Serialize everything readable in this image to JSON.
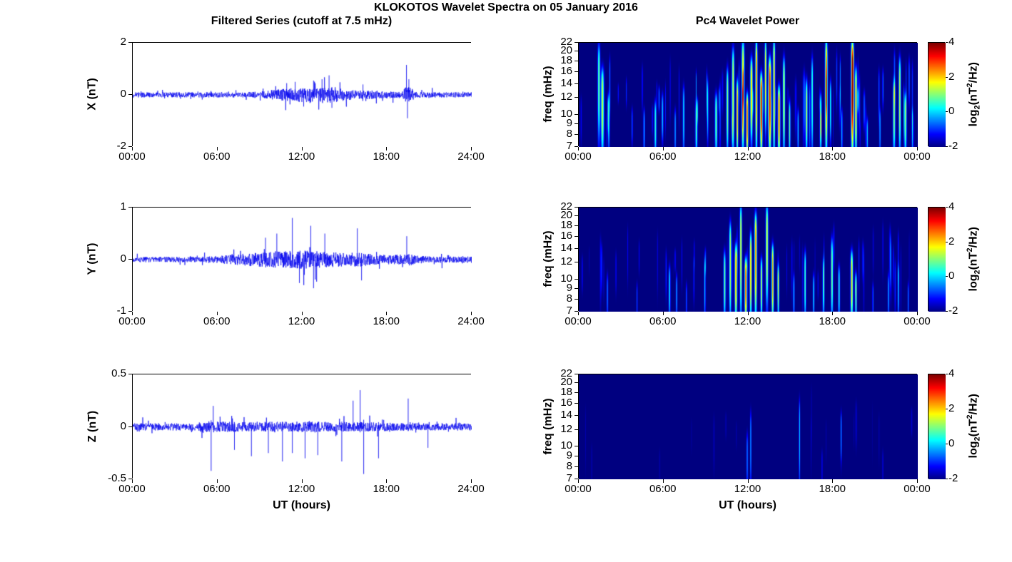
{
  "figure": {
    "title": "KLOKOTOS Wavelet Spectra on 05 January 2016"
  },
  "station": "KLOKOTOS",
  "date": "05 January 2016",
  "left_column": {
    "title": "Filtered Series (cutoff at 7.5 mHz)",
    "xlabel": "UT (hours)"
  },
  "right_column": {
    "title": "Pc4 Wavelet Power",
    "xlabel": "UT (hours)"
  },
  "chart_data": [
    {
      "id": "series-x",
      "type": "line",
      "ylabel": "X (nT)",
      "ylim": [
        -2,
        2
      ],
      "yticks": [
        -2,
        0,
        2
      ],
      "xlim_hours": [
        0,
        24
      ],
      "xtick_labels": [
        "00:00",
        "06:00",
        "12:00",
        "18:00",
        "24:00"
      ],
      "line_color": "#0000ee",
      "noise_envelope": [
        [
          0,
          0.1
        ],
        [
          8,
          0.1
        ],
        [
          9,
          0.13
        ],
        [
          10,
          0.2
        ],
        [
          11,
          0.25
        ],
        [
          12,
          0.28
        ],
        [
          13,
          0.3
        ],
        [
          13.8,
          0.33
        ],
        [
          14.5,
          0.28
        ],
        [
          15,
          0.22
        ],
        [
          16,
          0.15
        ],
        [
          17,
          0.18
        ],
        [
          18,
          0.13
        ],
        [
          19,
          0.12
        ],
        [
          19.3,
          0.3
        ],
        [
          19.6,
          0.3
        ],
        [
          20,
          0.12
        ],
        [
          21,
          0.1
        ],
        [
          24,
          0.1
        ]
      ],
      "spikes": [
        [
          10.9,
          0.45
        ],
        [
          11.5,
          0.5
        ],
        [
          12.1,
          -0.45
        ],
        [
          12.8,
          0.55
        ],
        [
          13.4,
          0.6
        ],
        [
          13.9,
          0.75
        ],
        [
          14.1,
          -0.5
        ],
        [
          16.3,
          0.4
        ],
        [
          19.38,
          1.15
        ],
        [
          19.45,
          -0.9
        ],
        [
          19.55,
          0.6
        ]
      ],
      "summary": "quiet band ~±0.1 nT, enhanced noise 10:00-15:00, large impulsive event ~19:25 reaching +1.1/-0.9 nT"
    },
    {
      "id": "series-y",
      "type": "line",
      "ylabel": "Y (nT)",
      "ylim": [
        -1,
        1
      ],
      "yticks": [
        -1,
        0,
        1
      ],
      "xlim_hours": [
        0,
        24
      ],
      "xtick_labels": [
        "00:00",
        "06:00",
        "12:00",
        "18:00",
        "24:00"
      ],
      "line_color": "#0000ee",
      "noise_envelope": [
        [
          0,
          0.05
        ],
        [
          4,
          0.05
        ],
        [
          5,
          0.06
        ],
        [
          6,
          0.07
        ],
        [
          7,
          0.09
        ],
        [
          8,
          0.12
        ],
        [
          9,
          0.14
        ],
        [
          10,
          0.16
        ],
        [
          11,
          0.17
        ],
        [
          12,
          0.18
        ],
        [
          13,
          0.16
        ],
        [
          14,
          0.15
        ],
        [
          15,
          0.13
        ],
        [
          16,
          0.14
        ],
        [
          17,
          0.1
        ],
        [
          18,
          0.09
        ],
        [
          19,
          0.1
        ],
        [
          19.5,
          0.14
        ],
        [
          20,
          0.08
        ],
        [
          21,
          0.06
        ],
        [
          24,
          0.06
        ]
      ],
      "spikes": [
        [
          9.4,
          0.42
        ],
        [
          10.2,
          0.5
        ],
        [
          11.3,
          0.8
        ],
        [
          11.8,
          -0.45
        ],
        [
          12.6,
          0.65
        ],
        [
          12.8,
          -0.55
        ],
        [
          13.6,
          0.5
        ],
        [
          15.9,
          0.6
        ],
        [
          16.2,
          -0.4
        ],
        [
          19.4,
          0.45
        ]
      ],
      "summary": "broad enhancement 08:00-16:00 with spikes to ~0.8 nT near 11:18"
    },
    {
      "id": "series-z",
      "type": "line",
      "ylabel": "Z (nT)",
      "ylim": [
        -0.5,
        0.5
      ],
      "yticks": [
        -0.5,
        0,
        0.5
      ],
      "xlim_hours": [
        0,
        24
      ],
      "xtick_labels": [
        "00:00",
        "06:00",
        "12:00",
        "18:00",
        "24:00"
      ],
      "line_color": "#0000ee",
      "noise_envelope": [
        [
          0,
          0.035
        ],
        [
          4.5,
          0.035
        ],
        [
          5,
          0.06
        ],
        [
          6,
          0.05
        ],
        [
          8,
          0.045
        ],
        [
          12,
          0.05
        ],
        [
          16,
          0.045
        ],
        [
          18,
          0.04
        ],
        [
          20,
          0.035
        ],
        [
          24,
          0.035
        ]
      ],
      "spikes": [
        [
          5.55,
          -0.42
        ],
        [
          5.7,
          0.2
        ],
        [
          7.2,
          -0.22
        ],
        [
          8.4,
          -0.28
        ],
        [
          9.6,
          -0.25
        ],
        [
          10.6,
          -0.33
        ],
        [
          11.3,
          -0.25
        ],
        [
          12.2,
          -0.3
        ],
        [
          13.1,
          -0.27
        ],
        [
          14.8,
          -0.33
        ],
        [
          15.6,
          0.25
        ],
        [
          16.1,
          0.35
        ],
        [
          16.35,
          -0.45
        ],
        [
          17.4,
          -0.3
        ],
        [
          19.5,
          0.27
        ],
        [
          20.9,
          -0.2
        ]
      ],
      "summary": "steady ~±0.05 nT band with sporadic downward spikes to ~-0.45 nT between 05:30 and 17:30"
    },
    {
      "id": "wavelet-x",
      "type": "heatmap",
      "ylabel": "freq (mHz)",
      "yscale": "log",
      "ylim_mhz": [
        7,
        22
      ],
      "yticks": [
        22,
        20,
        18,
        16,
        14,
        12,
        10,
        9,
        8,
        7
      ],
      "xtick_labels": [
        "00:00",
        "06:00",
        "12:00",
        "18:00",
        "00:00"
      ],
      "background_power": -2,
      "colorbar": {
        "colormap": "jet",
        "lim": [
          -2,
          4
        ],
        "ticks": [
          4,
          2,
          0,
          -2
        ],
        "label_parts": {
          "prefix": "log",
          "sub": "2",
          "mid": "(nT",
          "sup": "2",
          "suffix": "/Hz)"
        }
      },
      "bursts": [
        [
          1.4,
          0.08,
          8,
          21,
          3
        ],
        [
          1.65,
          0.1,
          7,
          16,
          3.5
        ],
        [
          2.1,
          0.06,
          7,
          12,
          2
        ],
        [
          4.6,
          0.05,
          7,
          10,
          2
        ],
        [
          5.4,
          0.07,
          7,
          11,
          2.5
        ],
        [
          5.9,
          0.06,
          8,
          12,
          2
        ],
        [
          6.8,
          0.05,
          7,
          10,
          1.8
        ],
        [
          7.4,
          0.06,
          7,
          13,
          2.2
        ],
        [
          8.3,
          0.07,
          7,
          11,
          2.8
        ],
        [
          9.1,
          0.05,
          8,
          14,
          2.2
        ],
        [
          9.7,
          0.08,
          7,
          12,
          3
        ],
        [
          10.5,
          0.07,
          7,
          16,
          3.2
        ],
        [
          10.9,
          0.08,
          7,
          20,
          3.6
        ],
        [
          11.2,
          0.06,
          7,
          14,
          4.5
        ],
        [
          11.6,
          0.09,
          7,
          22,
          4
        ],
        [
          11.9,
          0.07,
          7,
          12,
          5
        ],
        [
          12.2,
          0.08,
          8,
          18,
          4.2
        ],
        [
          12.55,
          0.07,
          7,
          22,
          4.8
        ],
        [
          12.9,
          0.08,
          7,
          15,
          5.2
        ],
        [
          13.2,
          0.06,
          9,
          22,
          4
        ],
        [
          13.5,
          0.09,
          7,
          18,
          5.5
        ],
        [
          13.8,
          0.07,
          7,
          22,
          4.6
        ],
        [
          14.15,
          0.08,
          7,
          13,
          5
        ],
        [
          14.5,
          0.07,
          7,
          18,
          3.8
        ],
        [
          14.9,
          0.06,
          7,
          11,
          3
        ],
        [
          15.5,
          0.05,
          7,
          10,
          2
        ],
        [
          16.1,
          0.07,
          7,
          14,
          3.5
        ],
        [
          16.5,
          0.06,
          7,
          18,
          2.8
        ],
        [
          17.1,
          0.06,
          7,
          12,
          3
        ],
        [
          17.5,
          0.08,
          7,
          22,
          5
        ],
        [
          17.8,
          0.05,
          8,
          14,
          2.5
        ],
        [
          18.6,
          0.05,
          7,
          10,
          2
        ],
        [
          19.35,
          0.09,
          7,
          22,
          6
        ],
        [
          19.6,
          0.07,
          7,
          16,
          4.5
        ],
        [
          20.4,
          0.05,
          7,
          9,
          2
        ],
        [
          21.3,
          0.05,
          7,
          10,
          1.8
        ],
        [
          22.3,
          0.08,
          7,
          14,
          3.2
        ],
        [
          22.7,
          0.07,
          7,
          18,
          3.5
        ],
        [
          23.1,
          0.08,
          7,
          12,
          3
        ],
        [
          23.6,
          0.05,
          7,
          10,
          2
        ]
      ],
      "micro_count": 60,
      "micro_power": 1.2,
      "summary": "strong broadband Pc4 bursts 10:30-15:00, intense red event ~19:20, moderate clusters 16:00-18:00 and 22:00-23:30"
    },
    {
      "id": "wavelet-y",
      "type": "heatmap",
      "ylabel": "freq (mHz)",
      "yscale": "log",
      "ylim_mhz": [
        7,
        22
      ],
      "yticks": [
        22,
        20,
        18,
        16,
        14,
        12,
        10,
        9,
        8,
        7
      ],
      "xtick_labels": [
        "00:00",
        "06:00",
        "12:00",
        "18:00",
        "00:00"
      ],
      "background_power": -2,
      "colorbar": {
        "colormap": "jet",
        "lim": [
          -2,
          4
        ],
        "ticks": [
          4,
          2,
          0,
          -2
        ],
        "label_parts": {
          "prefix": "log",
          "sub": "2",
          "mid": "(nT",
          "sup": "2",
          "suffix": "/Hz)"
        }
      },
      "bursts": [
        [
          2,
          0.05,
          7,
          10,
          1.5
        ],
        [
          4.1,
          0.04,
          7,
          9,
          1.2
        ],
        [
          6.4,
          0.06,
          7,
          11,
          2.2
        ],
        [
          6.9,
          0.05,
          7,
          10,
          1.8
        ],
        [
          7.6,
          0.04,
          7,
          9,
          1.5
        ],
        [
          8.9,
          0.05,
          7,
          12,
          2
        ],
        [
          10.3,
          0.07,
          7,
          13,
          3
        ],
        [
          10.7,
          0.07,
          7,
          18,
          3.5
        ],
        [
          11.1,
          0.08,
          7,
          14,
          4.5
        ],
        [
          11.45,
          0.07,
          7,
          22,
          3.8
        ],
        [
          11.8,
          0.08,
          7,
          12,
          5
        ],
        [
          12.15,
          0.07,
          7,
          16,
          4.2
        ],
        [
          12.5,
          0.08,
          7,
          20,
          4.6
        ],
        [
          12.9,
          0.06,
          7,
          12,
          3.5
        ],
        [
          13.3,
          0.08,
          8,
          22,
          3.8
        ],
        [
          13.7,
          0.07,
          7,
          14,
          4.4
        ],
        [
          14.1,
          0.06,
          7,
          11,
          3
        ],
        [
          15.2,
          0.05,
          7,
          10,
          2
        ],
        [
          16,
          0.06,
          7,
          13,
          2.8
        ],
        [
          16.6,
          0.05,
          7,
          10,
          2.2
        ],
        [
          17.3,
          0.06,
          7,
          12,
          2.5
        ],
        [
          17.9,
          0.07,
          7,
          15,
          3.2
        ],
        [
          18.4,
          0.06,
          7,
          11,
          2.6
        ],
        [
          19.3,
          0.08,
          7,
          13,
          4.2
        ],
        [
          19.6,
          0.06,
          7,
          10,
          3
        ],
        [
          20.8,
          0.04,
          7,
          9,
          1.5
        ],
        [
          21.9,
          0.05,
          7,
          10,
          1.8
        ],
        [
          22.6,
          0.05,
          7,
          11,
          2
        ],
        [
          23.3,
          0.04,
          7,
          9,
          1.5
        ]
      ],
      "micro_count": 45,
      "micro_power": 0.8,
      "summary": "moderate Pc4 activity concentrated 10:00-14:30 with bright low-frequency streaks, secondary activity 16:00-19:40"
    },
    {
      "id": "wavelet-z",
      "type": "heatmap",
      "ylabel": "freq (mHz)",
      "yscale": "log",
      "ylim_mhz": [
        7,
        22
      ],
      "yticks": [
        22,
        20,
        18,
        16,
        14,
        12,
        10,
        9,
        8,
        7
      ],
      "xtick_labels": [
        "00:00",
        "06:00",
        "12:00",
        "18:00",
        "00:00"
      ],
      "background_power": -2,
      "colorbar": {
        "colormap": "jet",
        "lim": [
          -2,
          4
        ],
        "ticks": [
          4,
          2,
          0,
          -2
        ],
        "label_parts": {
          "prefix": "log",
          "sub": "2",
          "mid": "(nT",
          "sup": "2",
          "suffix": "/Hz)"
        }
      },
      "bursts": [
        [
          11.9,
          0.05,
          7,
          11,
          1.6
        ],
        [
          12.15,
          0.04,
          7,
          14,
          2
        ],
        [
          15.6,
          0.04,
          7,
          16,
          2.2
        ],
        [
          17.2,
          0.03,
          7,
          9,
          1
        ],
        [
          18.55,
          0.04,
          9,
          14,
          1.8
        ],
        [
          21.5,
          0.03,
          7,
          9,
          0.8
        ]
      ],
      "micro_count": 15,
      "micro_power": 0.4,
      "summary": "mostly quiet (background -2), only faint thin streaks near 12:00, 15:40 and 18:30"
    }
  ]
}
